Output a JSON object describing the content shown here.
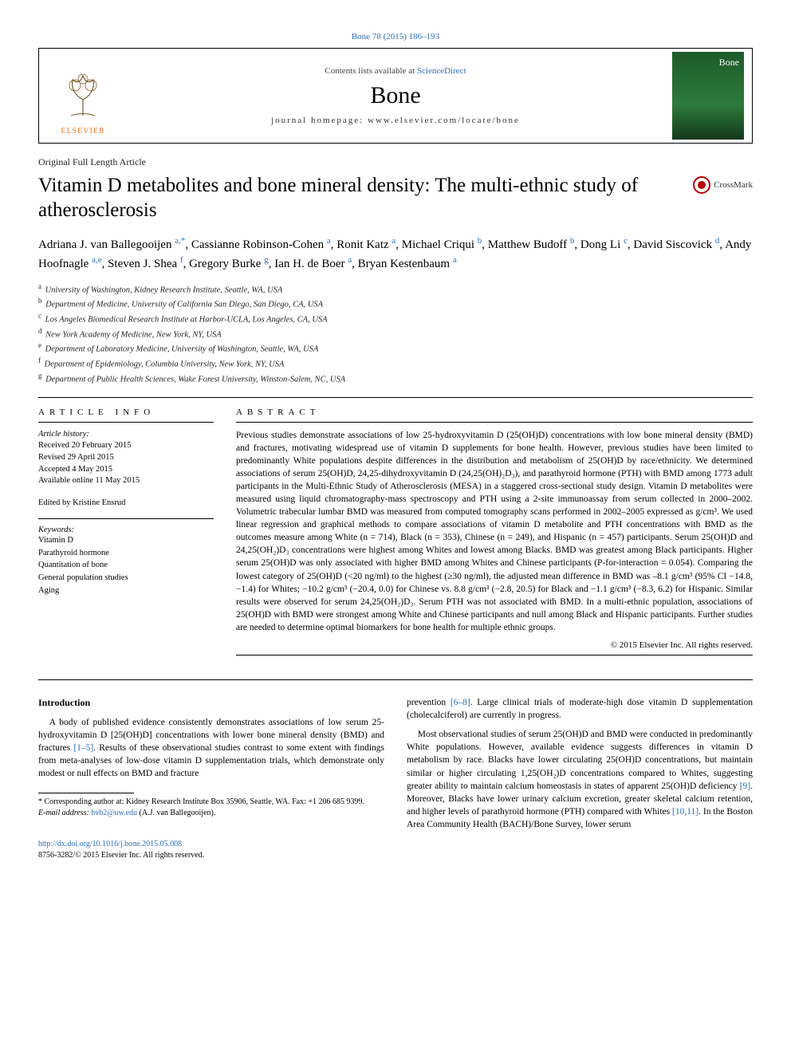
{
  "citation": "Bone 78 (2015) 186–193",
  "banner": {
    "contents_prefix": "Contents lists available at ",
    "contents_link": "ScienceDirect",
    "journal": "Bone",
    "homepage_label": "journal homepage: www.elsevier.com/locate/bone",
    "publisher": "ELSEVIER",
    "cover_label": "Bone"
  },
  "article_type": "Original Full Length Article",
  "title": "Vitamin D metabolites and bone mineral density: The multi-ethnic study of atherosclerosis",
  "crossmark": "CrossMark",
  "authors_html": "Adriana J. van Ballegooijen <sup class='aff-link'>a,</sup><sup class='star'>*</sup>, Cassianne Robinson-Cohen <sup class='aff-link'>a</sup>, Ronit Katz <sup class='aff-link'>a</sup>, Michael Criqui <sup class='aff-link'>b</sup>, Matthew Budoff <sup class='aff-link'>b</sup>, Dong Li <sup class='aff-link'>c</sup>, David Siscovick <sup class='aff-link'>d</sup>, Andy Hoofnagle <sup class='aff-link'>a,e</sup>, Steven J. Shea <sup class='aff-link'>f</sup>, Gregory Burke <sup class='aff-link'>g</sup>, Ian H. de Boer <sup class='aff-link'>a</sup>, Bryan Kestenbaum <sup class='aff-link'>a</sup>",
  "affiliations": [
    {
      "key": "a",
      "text": "University of Washington, Kidney Research Institute, Seattle, WA, USA"
    },
    {
      "key": "b",
      "text": "Department of Medicine, University of California San Diego, San Diego, CA, USA"
    },
    {
      "key": "c",
      "text": "Los Angeles Biomedical Research Institute at Harbor-UCLA, Los Angeles, CA, USA"
    },
    {
      "key": "d",
      "text": "New York Academy of Medicine, New York, NY, USA"
    },
    {
      "key": "e",
      "text": "Department of Laboratory Medicine, University of Washington, Seattle, WA, USA"
    },
    {
      "key": "f",
      "text": "Department of Epidemiology, Columbia University, New York, NY, USA"
    },
    {
      "key": "g",
      "text": "Department of Public Health Sciences, Wake Forest University, Winston-Salem, NC, USA"
    }
  ],
  "info": {
    "heading": "article info",
    "history_label": "Article history:",
    "dates": [
      "Received 20 February 2015",
      "Revised 29 April 2015",
      "Accepted 4 May 2015",
      "Available online 11 May 2015"
    ],
    "edited_by": "Edited by Kristine Ensrud",
    "keywords_label": "Keywords:",
    "keywords": [
      "Vitamin D",
      "Parathyroid hormone",
      "Quantitation of bone",
      "General population studies",
      "Aging"
    ]
  },
  "abstract": {
    "heading": "abstract",
    "text": "Previous studies demonstrate associations of low 25-hydroxyvitamin D (25(OH)D) concentrations with low bone mineral density (BMD) and fractures, motivating widespread use of vitamin D supplements for bone health. However, previous studies have been limited to predominantly White populations despite differences in the distribution and metabolism of 25(OH)D by race/ethnicity. We determined associations of serum 25(OH)D, 24,25-dihydroxyvitamin D (24,25(OH)₂D₃), and parathyroid hormone (PTH) with BMD among 1773 adult participants in the Multi-Ethnic Study of Atherosclerosis (MESA) in a staggered cross-sectional study design. Vitamin D metabolites were measured using liquid chromatography-mass spectroscopy and PTH using a 2-site immunoassay from serum collected in 2000–2002. Volumetric trabecular lumbar BMD was measured from computed tomography scans performed in 2002–2005 expressed as g/cm³. We used linear regression and graphical methods to compare associations of vitamin D metabolite and PTH concentrations with BMD as the outcomes measure among White (n = 714), Black (n = 353), Chinese (n = 249), and Hispanic (n = 457) participants. Serum 25(OH)D and 24,25(OH₂)D₃ concentrations were highest among Whites and lowest among Blacks. BMD was greatest among Black participants. Higher serum 25(OH)D was only associated with higher BMD among Whites and Chinese participants (P-for-interaction = 0.054). Comparing the lowest category of 25(OH)D (<20 ng/ml) to the highest (≥30 ng/ml), the adjusted mean difference in BMD was –8.1 g/cm³ (95% CI −14.8, −1.4) for Whites; −10.2 g/cm³ (−20.4, 0.0) for Chinese vs. 8.8 g/cm³ (−2.8, 20.5) for Black and −1.1 g/cm³ (−8.3, 6.2) for Hispanic. Similar results were observed for serum 24,25(OH₂)D₃. Serum PTH was not associated with BMD. In a multi-ethnic population, associations of 25(OH)D with BMD were strongest among White and Chinese participants and null among Black and Hispanic participants. Further studies are needed to determine optimal biomarkers for bone health for multiple ethnic groups.",
    "copyright": "© 2015 Elsevier Inc. All rights reserved."
  },
  "body": {
    "intro_heading": "Introduction",
    "left_p1": "A body of published evidence consistently demonstrates associations of low serum 25-hydroxyvitamin D [25(OH)D] concentrations with lower bone mineral density (BMD) and fractures ",
    "ref1": "[1–5]",
    "left_p1b": ". Results of these observational studies contrast to some extent with findings from meta-analyses of low-dose vitamin D supplementation trials, which demonstrate only modest or null effects on BMD and fracture",
    "right_p1a": "prevention ",
    "ref2": "[6–8]",
    "right_p1b": ". Large clinical trials of moderate-high dose vitamin D supplementation (cholecalciferol) are currently in progress.",
    "right_p2a": "Most observational studies of serum 25(OH)D and BMD were conducted in predominantly White populations. However, available evidence suggests differences in vitamin D metabolism by race. Blacks have lower circulating 25(OH)D concentrations, but maintain similar or higher circulating 1,25(OH₂)D concentrations compared to Whites, suggesting greater ability to maintain calcium homeostasis in states of apparent 25(OH)D deficiency ",
    "ref3": "[9]",
    "right_p2b": ". Moreover, Blacks have lower urinary calcium excretion, greater skeletal calcium retention, and higher levels of parathyroid hormone (PTH) compared with Whites ",
    "ref4": "[10,11]",
    "right_p2c": ". In the Boston Area Community Health (BACH)/Bone Survey, lower serum"
  },
  "footnote": {
    "corr": "* Corresponding author at: Kidney Research Institute Box 35906, Seattle, WA. Fax: +1 206 685 9399.",
    "email_label": "E-mail address: ",
    "email": "hvb2@uw.edu",
    "email_suffix": " (A.J. van Ballegooijen)."
  },
  "doi": {
    "url": "http://dx.doi.org/10.1016/j.bone.2015.05.008",
    "issn_line": "8756-3282/© 2015 Elsevier Inc. All rights reserved."
  },
  "colors": {
    "link": "#2a6ebb",
    "elsevier_orange": "#e8792a",
    "cover_bg": "#1e5a2a"
  }
}
